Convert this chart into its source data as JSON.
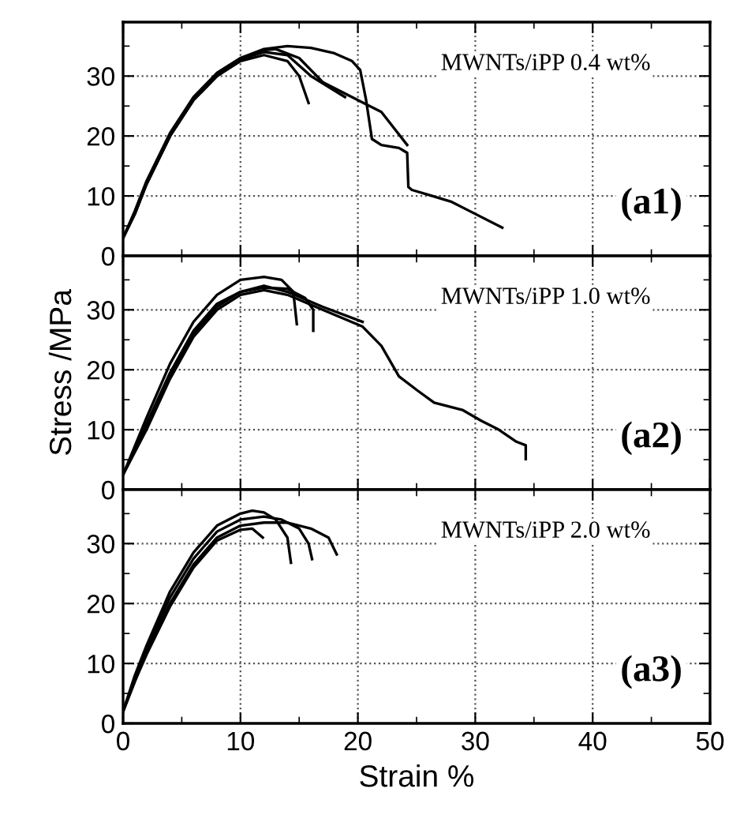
{
  "chart_data": [
    {
      "type": "line",
      "xlim": [
        0,
        50
      ],
      "ylim": [
        0,
        39
      ],
      "xticks": [
        0,
        {
          "value": 5,
          "label": null
        },
        10,
        {
          "value": 15,
          "label": null
        },
        20,
        {
          "value": 25,
          "label": null
        },
        30,
        {
          "value": 35,
          "label": null
        },
        40,
        {
          "value": 45,
          "label": null
        },
        50
      ],
      "yticks": [
        0,
        {
          "value": 5,
          "label": null
        },
        10,
        {
          "value": 15,
          "label": null
        },
        20,
        {
          "value": 25,
          "label": null
        },
        30,
        {
          "value": 35,
          "label": null
        }
      ],
      "tick_labels": "y",
      "grid": true,
      "annotations": [
        "MWNTs/iPP 0.4 wt%",
        "(a1)"
      ],
      "series": [
        {
          "color": "#000000",
          "x": [
            0,
            1,
            2,
            4,
            6,
            8,
            10,
            12,
            14,
            16,
            18,
            19.5,
            20.2,
            20.7,
            21.2,
            22,
            23.5,
            24.2,
            24.3,
            24.6,
            26,
            28,
            30,
            32.3
          ],
          "values": [
            3,
            7,
            12,
            20,
            26,
            30.5,
            33,
            34.5,
            35,
            34.7,
            33.8,
            32.5,
            31,
            26,
            19.5,
            18.5,
            18,
            17.2,
            11.5,
            11,
            10.2,
            9,
            7,
            4.7
          ]
        },
        {
          "color": "#000000",
          "x": [
            0,
            1,
            2,
            4,
            6,
            8,
            10,
            12,
            13,
            15,
            17,
            20,
            22,
            24.2
          ],
          "values": [
            3,
            7.5,
            12.5,
            20.5,
            26.5,
            30.5,
            33,
            34.3,
            34.5,
            33,
            29,
            26,
            24,
            18.5
          ]
        },
        {
          "color": "#000000",
          "x": [
            0,
            1,
            2,
            4,
            6,
            8,
            10,
            12,
            14,
            16,
            18.9
          ],
          "values": [
            3,
            7,
            12,
            20,
            26,
            30,
            32.8,
            34,
            33.5,
            30,
            26.5
          ]
        },
        {
          "color": "#000000",
          "x": [
            0,
            1,
            2,
            4,
            6,
            8,
            10,
            12,
            14,
            15,
            15.8
          ],
          "values": [
            3,
            7,
            12,
            20,
            26,
            30,
            32.5,
            33.5,
            32.5,
            30,
            25.5
          ]
        }
      ]
    },
    {
      "type": "line",
      "xlim": [
        0,
        50
      ],
      "ylim": [
        0,
        39
      ],
      "xticks": [
        0,
        {
          "value": 5,
          "label": null
        },
        10,
        {
          "value": 15,
          "label": null
        },
        20,
        {
          "value": 25,
          "label": null
        },
        30,
        {
          "value": 35,
          "label": null
        },
        40,
        {
          "value": 45,
          "label": null
        },
        50
      ],
      "yticks": [
        0,
        {
          "value": 5,
          "label": null
        },
        10,
        {
          "value": 15,
          "label": null
        },
        20,
        {
          "value": 25,
          "label": null
        },
        30,
        {
          "value": 35,
          "label": null
        }
      ],
      "tick_labels": "y",
      "grid": true,
      "ylabel": "Stress /MPa",
      "annotations": [
        "MWNTs/iPP 1.0 wt%",
        "(a2)"
      ],
      "series": [
        {
          "color": "#000000",
          "x": [
            0,
            2,
            4,
            6,
            8,
            10,
            12,
            13.5,
            14.5,
            14.8
          ],
          "values": [
            2.5,
            12,
            21,
            28,
            32.5,
            35,
            35.5,
            35,
            33,
            27.6
          ]
        },
        {
          "color": "#000000",
          "x": [
            0,
            2,
            4,
            6,
            8,
            10,
            12,
            14,
            15.5,
            16.2,
            16.2
          ],
          "values": [
            2.5,
            11,
            19.5,
            26.5,
            31,
            33,
            33.7,
            33.5,
            32,
            30,
            26.5
          ]
        },
        {
          "color": "#000000",
          "x": [
            0,
            2,
            4,
            6,
            8,
            10,
            12,
            14,
            17,
            20.4
          ],
          "values": [
            2.5,
            10.5,
            19,
            26,
            30.5,
            33,
            34,
            33,
            30.5,
            28
          ]
        },
        {
          "color": "#000000",
          "x": [
            0,
            2,
            4,
            6,
            8,
            10,
            12,
            14,
            17,
            20.4,
            22,
            23.5,
            25.1,
            26.5,
            28.9,
            30.5,
            32,
            33.5,
            34.3,
            34.3
          ],
          "values": [
            2.5,
            10,
            18.5,
            25.5,
            30,
            32.5,
            33.3,
            32.5,
            30,
            27.2,
            24,
            18.9,
            16.5,
            14.5,
            13.3,
            11.5,
            10,
            8,
            7.4,
            5.1
          ]
        }
      ]
    },
    {
      "type": "line",
      "xlim": [
        0,
        50
      ],
      "ylim": [
        0,
        39
      ],
      "xticks": [
        0,
        {
          "value": 5,
          "label": null
        },
        10,
        {
          "value": 15,
          "label": null
        },
        20,
        {
          "value": 25,
          "label": null
        },
        30,
        {
          "value": 35,
          "label": null
        },
        40,
        {
          "value": 45,
          "label": null
        },
        50
      ],
      "yticks": [
        0,
        {
          "value": 5,
          "label": null
        },
        10,
        {
          "value": 15,
          "label": null
        },
        20,
        {
          "value": 25,
          "label": null
        },
        30,
        {
          "value": 35,
          "label": null
        }
      ],
      "grid": true,
      "xlabel": "Strain %",
      "annotations": [
        "MWNTs/iPP 2.0 wt%",
        "(a3)"
      ],
      "series": [
        {
          "color": "#000000",
          "x": [
            0,
            1,
            2,
            4,
            6,
            8,
            10,
            11,
            12,
            13,
            14,
            14.3
          ],
          "values": [
            2,
            8,
            13,
            22,
            28.5,
            33,
            35,
            35.5,
            35.2,
            34,
            31,
            26.8
          ]
        },
        {
          "color": "#000000",
          "x": [
            0,
            1,
            2,
            4,
            6,
            8,
            10,
            12,
            13.5,
            15,
            15.8,
            16.1
          ],
          "values": [
            2,
            7.5,
            12.5,
            21,
            27.5,
            32,
            34,
            34.5,
            34,
            32.5,
            30,
            27.4
          ]
        },
        {
          "color": "#000000",
          "x": [
            0,
            1,
            2,
            4,
            6,
            8,
            10,
            12,
            14,
            16,
            17.5,
            18.2
          ],
          "values": [
            2,
            7,
            12,
            20,
            26.5,
            31,
            33,
            33.5,
            33.5,
            32.5,
            31,
            28.2
          ]
        },
        {
          "color": "#000000",
          "x": [
            0,
            1,
            2,
            4,
            6,
            8,
            10,
            11,
            11.9
          ],
          "values": [
            2,
            7,
            11.5,
            19.5,
            26,
            30.5,
            32.3,
            32.5,
            31
          ]
        }
      ]
    }
  ]
}
